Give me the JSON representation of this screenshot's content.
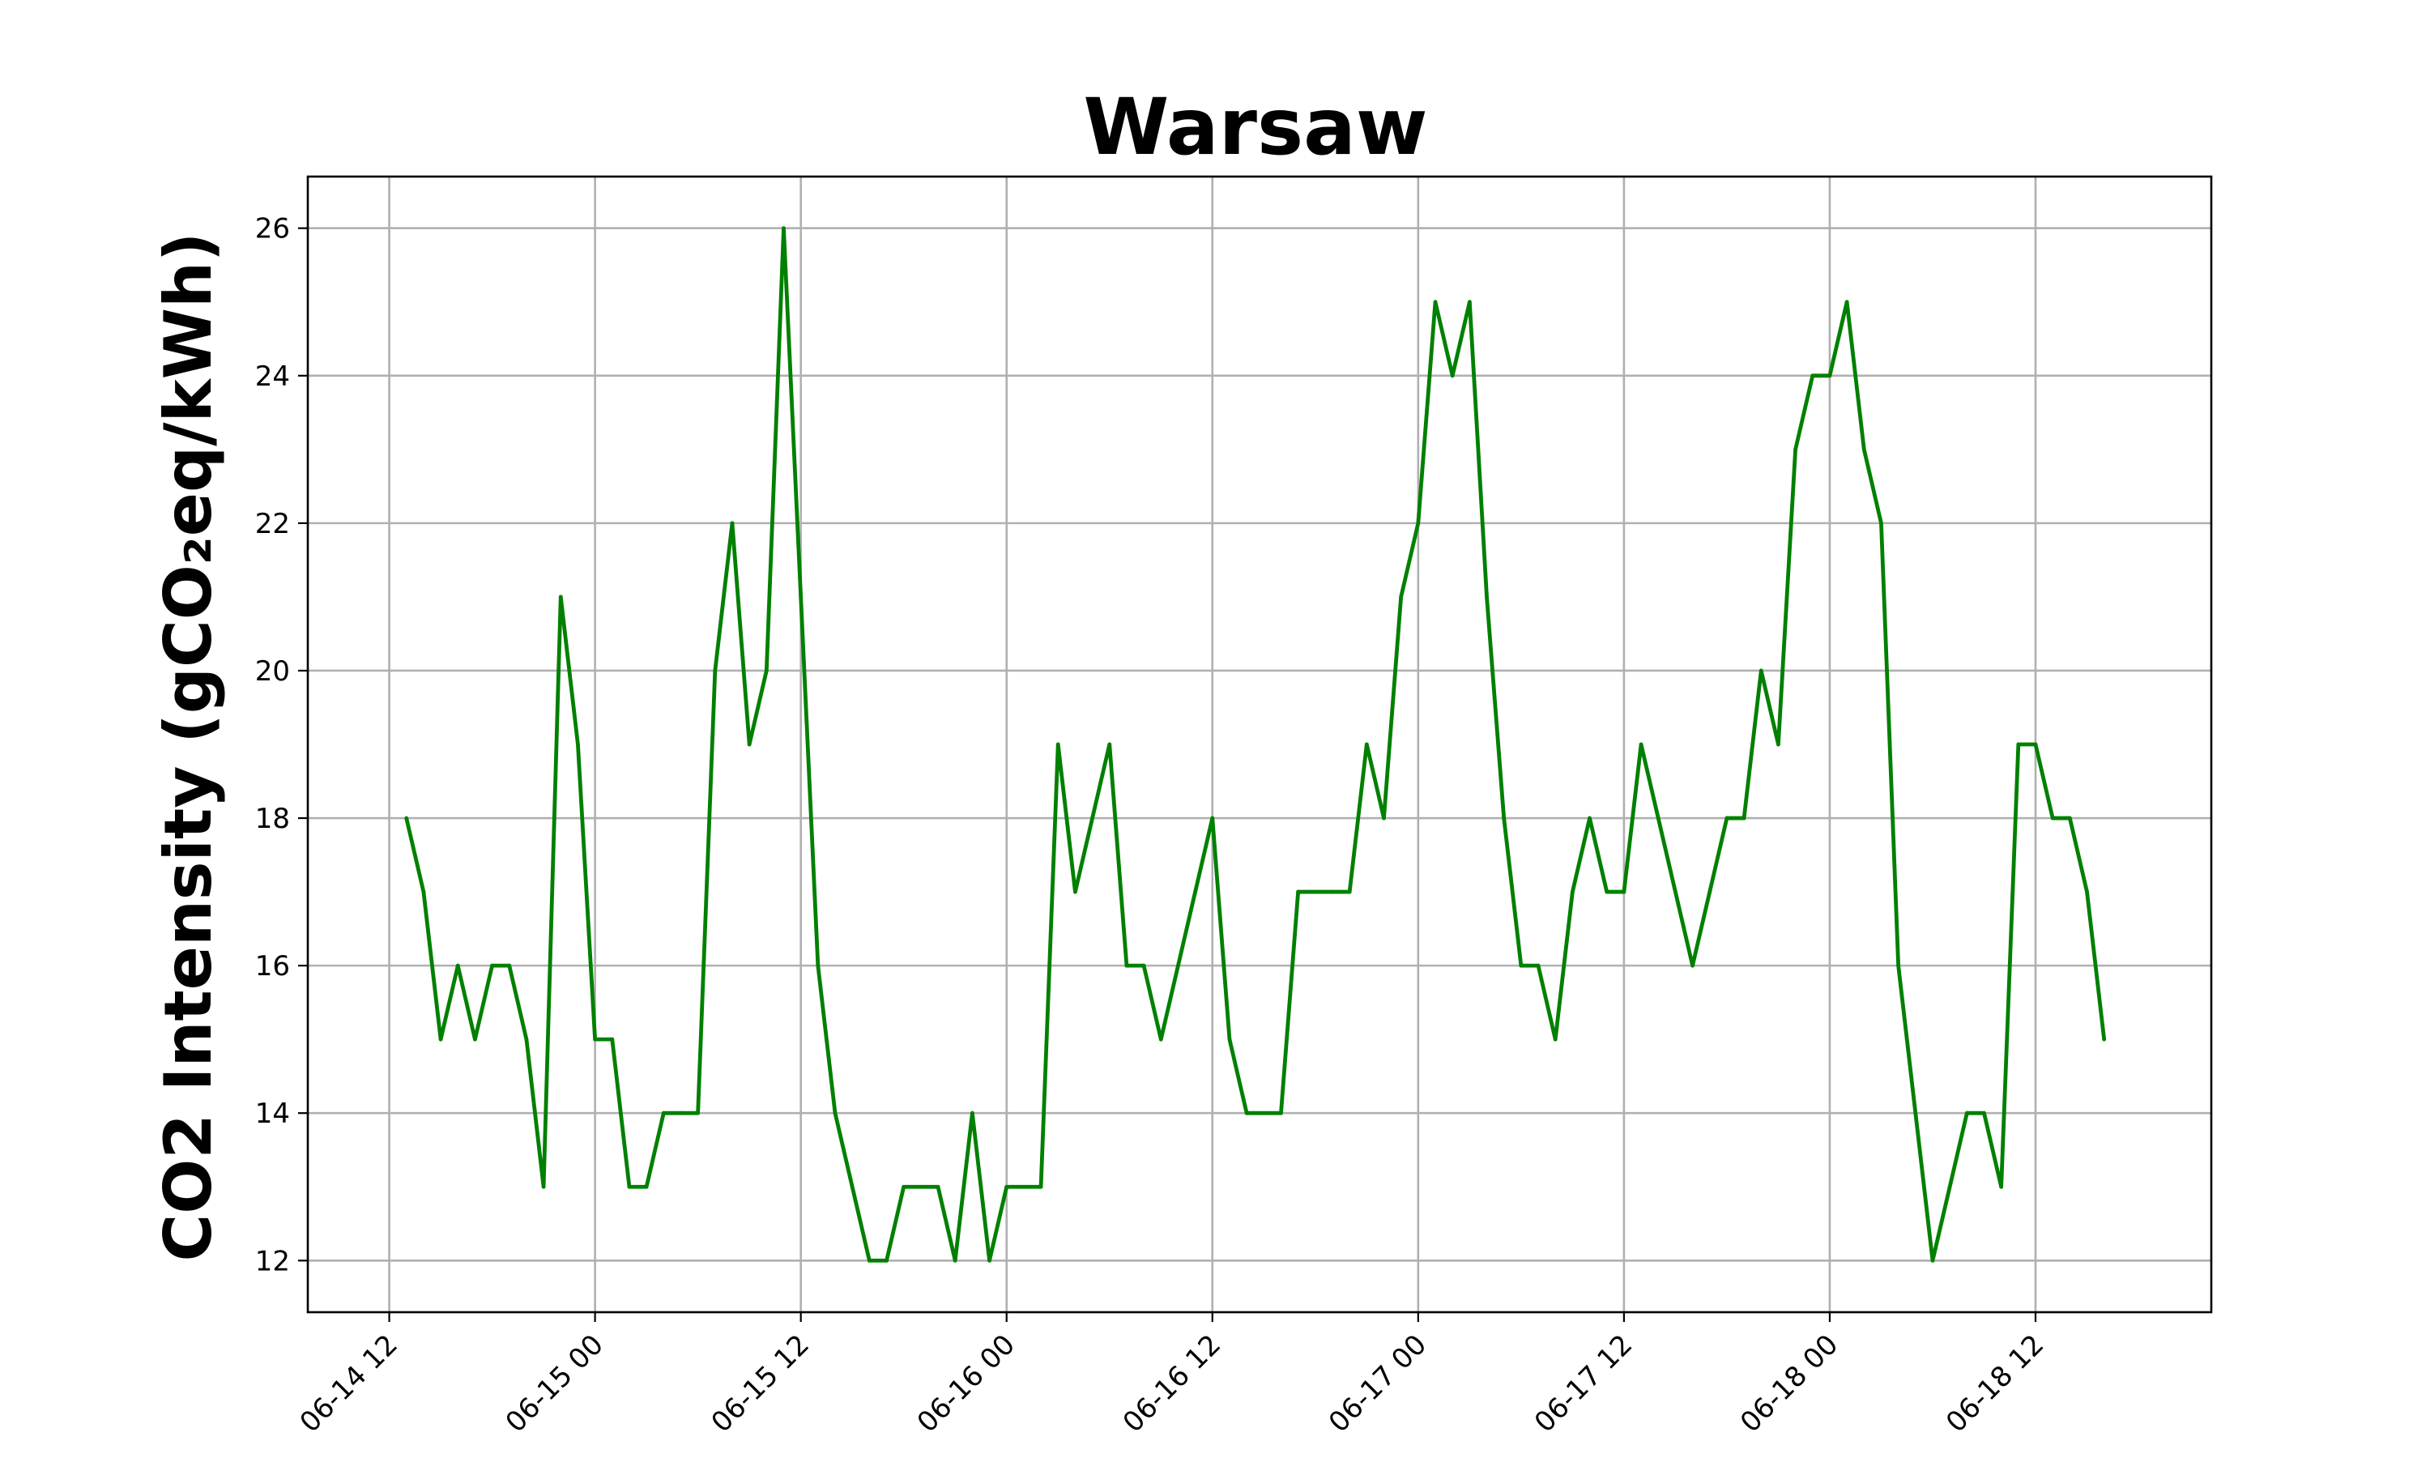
{
  "chart_data": {
    "type": "line",
    "title": "Warsaw",
    "xlabel": "",
    "ylabel": "CO2 Intensity (gCO₂eq/kWh)",
    "x_ticks": [
      "06-14 12",
      "06-15 00",
      "06-15 12",
      "06-16 00",
      "06-16 12",
      "06-17 00",
      "06-17 12",
      "06-18 00",
      "06-18 12"
    ],
    "y_ticks": [
      12,
      14,
      16,
      18,
      20,
      22,
      24,
      26
    ],
    "xlim": [
      "06-14 07:15",
      "06-18 22:15"
    ],
    "ylim": [
      11.3,
      26.7
    ],
    "grid": true,
    "series": [
      {
        "color": "#008000",
        "points": [
          [
            "06-14 13:00",
            18
          ],
          [
            "06-14 14:00",
            17
          ],
          [
            "06-14 15:00",
            15
          ],
          [
            "06-14 16:00",
            16
          ],
          [
            "06-14 17:00",
            15
          ],
          [
            "06-14 18:00",
            16
          ],
          [
            "06-14 19:00",
            16
          ],
          [
            "06-14 20:00",
            15
          ],
          [
            "06-14 21:00",
            13
          ],
          [
            "06-14 22:00",
            21
          ],
          [
            "06-14 23:00",
            19
          ],
          [
            "06-15 00:00",
            15
          ],
          [
            "06-15 01:00",
            15
          ],
          [
            "06-15 02:00",
            13
          ],
          [
            "06-15 03:00",
            13
          ],
          [
            "06-15 04:00",
            14
          ],
          [
            "06-15 05:00",
            14
          ],
          [
            "06-15 06:00",
            14
          ],
          [
            "06-15 07:00",
            20
          ],
          [
            "06-15 08:00",
            22
          ],
          [
            "06-15 09:00",
            19
          ],
          [
            "06-15 10:00",
            20
          ],
          [
            "06-15 11:00",
            26
          ],
          [
            "06-15 12:00",
            21
          ],
          [
            "06-15 13:00",
            16
          ],
          [
            "06-15 14:00",
            14
          ],
          [
            "06-15 15:00",
            13
          ],
          [
            "06-15 16:00",
            12
          ],
          [
            "06-15 17:00",
            12
          ],
          [
            "06-15 18:00",
            13
          ],
          [
            "06-15 19:00",
            13
          ],
          [
            "06-15 20:00",
            13
          ],
          [
            "06-15 21:00",
            12
          ],
          [
            "06-15 22:00",
            14
          ],
          [
            "06-15 23:00",
            12
          ],
          [
            "06-16 00:00",
            13
          ],
          [
            "06-16 01:00",
            13
          ],
          [
            "06-16 02:00",
            13
          ],
          [
            "06-16 03:00",
            19
          ],
          [
            "06-16 04:00",
            17
          ],
          [
            "06-16 05:00",
            18
          ],
          [
            "06-16 06:00",
            19
          ],
          [
            "06-16 07:00",
            16
          ],
          [
            "06-16 08:00",
            16
          ],
          [
            "06-16 09:00",
            15
          ],
          [
            "06-16 10:00",
            16
          ],
          [
            "06-16 11:00",
            17
          ],
          [
            "06-16 12:00",
            18
          ],
          [
            "06-16 13:00",
            15
          ],
          [
            "06-16 14:00",
            14
          ],
          [
            "06-16 15:00",
            14
          ],
          [
            "06-16 16:00",
            14
          ],
          [
            "06-16 17:00",
            17
          ],
          [
            "06-16 18:00",
            17
          ],
          [
            "06-16 19:00",
            17
          ],
          [
            "06-16 20:00",
            17
          ],
          [
            "06-16 21:00",
            19
          ],
          [
            "06-16 22:00",
            18
          ],
          [
            "06-16 23:00",
            21
          ],
          [
            "06-17 00:00",
            22
          ],
          [
            "06-17 01:00",
            25
          ],
          [
            "06-17 02:00",
            24
          ],
          [
            "06-17 03:00",
            25
          ],
          [
            "06-17 04:00",
            21
          ],
          [
            "06-17 05:00",
            18
          ],
          [
            "06-17 06:00",
            16
          ],
          [
            "06-17 07:00",
            16
          ],
          [
            "06-17 08:00",
            15
          ],
          [
            "06-17 09:00",
            17
          ],
          [
            "06-17 10:00",
            18
          ],
          [
            "06-17 11:00",
            17
          ],
          [
            "06-17 12:00",
            17
          ],
          [
            "06-17 13:00",
            19
          ],
          [
            "06-17 14:00",
            18
          ],
          [
            "06-17 15:00",
            17
          ],
          [
            "06-17 16:00",
            16
          ],
          [
            "06-17 17:00",
            17
          ],
          [
            "06-17 18:00",
            18
          ],
          [
            "06-17 19:00",
            18
          ],
          [
            "06-17 20:00",
            20
          ],
          [
            "06-17 21:00",
            19
          ],
          [
            "06-17 22:00",
            23
          ],
          [
            "06-17 23:00",
            24
          ],
          [
            "06-18 00:00",
            24
          ],
          [
            "06-18 01:00",
            25
          ],
          [
            "06-18 02:00",
            23
          ],
          [
            "06-18 03:00",
            22
          ],
          [
            "06-18 04:00",
            16
          ],
          [
            "06-18 05:00",
            14
          ],
          [
            "06-18 06:00",
            12
          ],
          [
            "06-18 07:00",
            13
          ],
          [
            "06-18 08:00",
            14
          ],
          [
            "06-18 09:00",
            14
          ],
          [
            "06-18 10:00",
            13
          ],
          [
            "06-18 11:00",
            19
          ],
          [
            "06-18 12:00",
            19
          ],
          [
            "06-18 13:00",
            18
          ],
          [
            "06-18 14:00",
            18
          ],
          [
            "06-18 15:00",
            17
          ],
          [
            "06-18 16:00",
            15
          ]
        ]
      }
    ]
  }
}
